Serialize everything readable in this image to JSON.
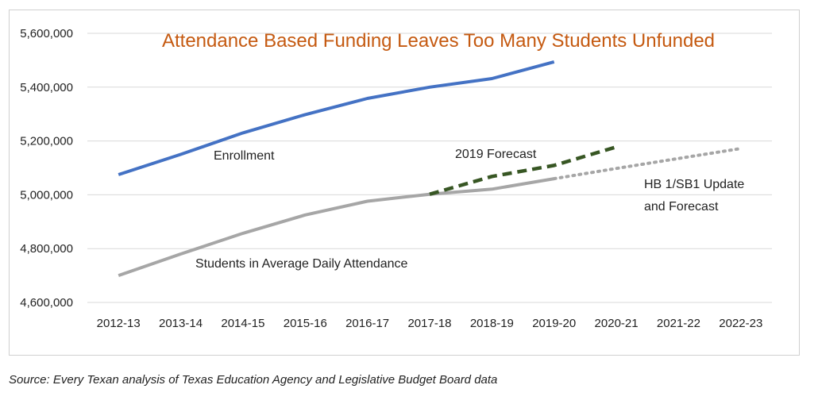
{
  "chart_data": {
    "type": "line",
    "title": "Attendance Based Funding Leaves Too Many Students Unfunded",
    "categories": [
      "2012-13",
      "2013-14",
      "2014-15",
      "2015-16",
      "2016-17",
      "2017-18",
      "2018-19",
      "2019-20",
      "2020-21",
      "2021-22",
      "2022-23"
    ],
    "ylim": [
      4600000,
      5600000
    ],
    "yticks": [
      4600000,
      4800000,
      5000000,
      5200000,
      5400000,
      5600000
    ],
    "ytick_labels": [
      "4,600,000",
      "4,800,000",
      "5,000,000",
      "5,200,000",
      "5,400,000",
      "5,600,000"
    ],
    "grid": true,
    "legend": "none",
    "series": [
      {
        "name": "Enrollment",
        "style": "solid",
        "color": "#4472c4",
        "values": [
          5075000,
          5150000,
          5230000,
          5298000,
          5358000,
          5400000,
          5432000,
          5494000,
          null,
          null,
          null
        ]
      },
      {
        "name": "Students in Average Daily Attendance",
        "style": "solid",
        "color": "#a6a6a6",
        "values": [
          4700000,
          4780000,
          4857000,
          4925000,
          4976000,
          5002000,
          5021000,
          5060000,
          null,
          null,
          null
        ]
      },
      {
        "name": "2019 Forecast",
        "style": "dashed",
        "color": "#375623",
        "values": [
          null,
          null,
          null,
          null,
          null,
          5002000,
          5068000,
          5109000,
          5178000,
          null,
          null
        ]
      },
      {
        "name": "HB 1/SB1 Update and Forecast",
        "style": "dotted",
        "color": "#a6a6a6",
        "values": [
          null,
          null,
          null,
          null,
          null,
          null,
          null,
          5060000,
          5098000,
          5135000,
          5172000
        ]
      }
    ],
    "annotations": {
      "enrollment": "Enrollment",
      "ada": "Students in Average Daily Attendance",
      "forecast_2019": "2019 Forecast",
      "hb1_line1": "HB 1/SB1 Update",
      "hb1_line2": "and Forecast"
    },
    "colors": {
      "title": "#c55a11",
      "grid": "#d9d9d9"
    }
  },
  "source": "Source: Every Texan analysis of Texas Education Agency and Legislative Budget Board data"
}
